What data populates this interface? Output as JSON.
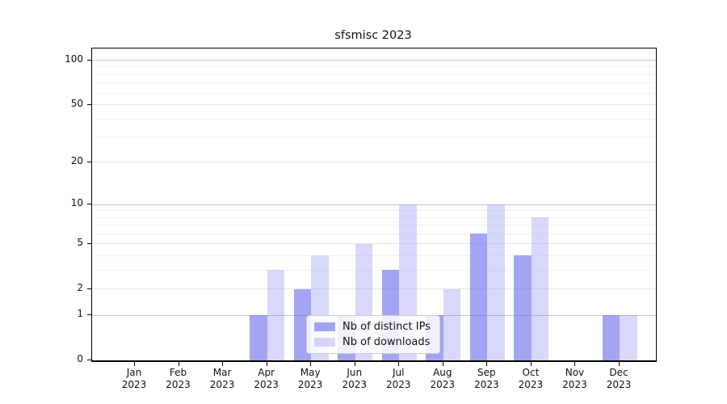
{
  "figure": {
    "title": "sfsmisc 2023"
  },
  "chart_data": {
    "type": "bar",
    "title": "sfsmisc 2023",
    "categories": [
      "Jan",
      "Feb",
      "Mar",
      "Apr",
      "May",
      "Jun",
      "Jul",
      "Aug",
      "Sep",
      "Oct",
      "Nov",
      "Dec"
    ],
    "x_sublabel": "2023",
    "series": [
      {
        "name": "Nb of distinct IPs",
        "color": "#a2a2f0",
        "fill_rgba": "rgba(103,103,238,0.60)",
        "values": [
          0,
          0,
          0,
          1,
          2,
          1,
          3,
          1,
          6,
          4,
          0,
          1
        ]
      },
      {
        "name": "Nb of downloads",
        "color": "#dadaf8",
        "fill_rgba": "rgba(125,125,240,0.30)",
        "values": [
          0,
          0,
          0,
          3,
          4,
          5,
          10,
          2,
          10,
          8,
          0,
          1
        ]
      }
    ],
    "yscale": "log1p",
    "ylim": [
      0,
      120
    ],
    "yticks": [
      0,
      1,
      2,
      5,
      10,
      20,
      50,
      100
    ],
    "decade_gridlines": [
      1,
      10,
      100
    ],
    "minor_gridlines": [
      3,
      4,
      6,
      7,
      8,
      9,
      30,
      40,
      60,
      70,
      80,
      90,
      110
    ],
    "grid": true,
    "legend_position": "lower center",
    "xlabel": "",
    "ylabel": ""
  },
  "colors": {
    "decade_grid": "#c6c6c6",
    "major_grid": "#e7e7e7",
    "minor_grid": "#f2f2f2",
    "axis": "#000000",
    "legend_border": "#cccccc"
  }
}
